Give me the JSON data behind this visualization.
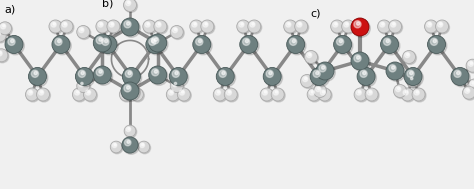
{
  "background_color": "#f0f0f0",
  "label_a": "a)",
  "label_b": "b)",
  "label_c": "c)",
  "label_fontsize": 8,
  "carbon_color": "#6e8080",
  "carbon_edge": "#4a5a5a",
  "hydrogen_color": "#d8d8d8",
  "hydrogen_edge": "#aaaaaa",
  "oxygen_color": "#cc1111",
  "oxygen_edge": "#880000",
  "bond_color": "#888888",
  "bond_lw": 2.0,
  "figw": 4.74,
  "figh": 1.89,
  "dpi": 100
}
